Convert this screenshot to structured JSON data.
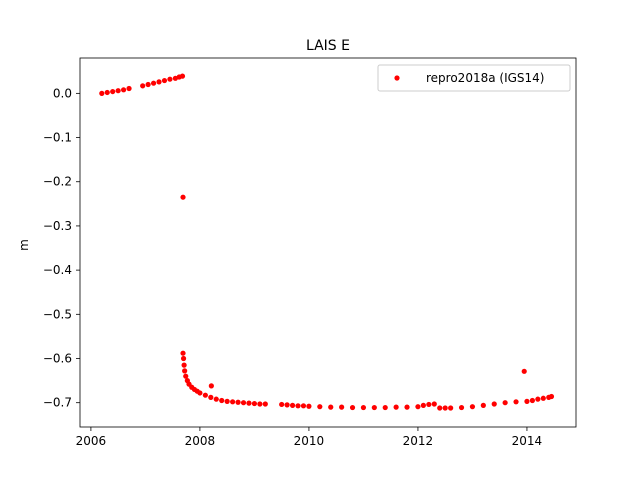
{
  "chart_data": {
    "type": "scatter",
    "title": "LAIS E",
    "xlabel": "",
    "ylabel": "m",
    "xlim": [
      2005.8,
      2014.9
    ],
    "ylim": [
      -0.755,
      0.08
    ],
    "xticks": [
      2006,
      2008,
      2010,
      2012,
      2014
    ],
    "xtick_labels": [
      "2006",
      "2008",
      "2010",
      "2012",
      "2014"
    ],
    "yticks": [
      0.0,
      -0.1,
      -0.2,
      -0.3,
      -0.4,
      -0.5,
      -0.6,
      -0.7
    ],
    "ytick_labels": [
      "0.0",
      "−0.1",
      "−0.2",
      "−0.3",
      "−0.4",
      "−0.5",
      "−0.6",
      "−0.7"
    ],
    "grid": false,
    "legend_position": "top-right",
    "series": [
      {
        "name": "repro2018a (IGS14)",
        "color": "#ff0000",
        "marker": "circle",
        "x": [
          2006.2,
          2006.3,
          2006.4,
          2006.5,
          2006.6,
          2006.7,
          2006.95,
          2007.05,
          2007.15,
          2007.25,
          2007.35,
          2007.45,
          2007.55,
          2007.62,
          2007.68,
          2007.69,
          2007.69,
          2007.7,
          2007.71,
          2007.72,
          2007.74,
          2007.77,
          2007.8,
          2007.85,
          2007.9,
          2007.95,
          2008.0,
          2008.1,
          2008.2,
          2008.21,
          2008.3,
          2008.4,
          2008.5,
          2008.6,
          2008.7,
          2008.8,
          2008.9,
          2009.0,
          2009.1,
          2009.2,
          2009.5,
          2009.6,
          2009.7,
          2009.8,
          2009.9,
          2010.0,
          2010.2,
          2010.4,
          2010.6,
          2010.8,
          2011.0,
          2011.2,
          2011.4,
          2011.6,
          2011.8,
          2012.0,
          2012.1,
          2012.2,
          2012.3,
          2012.4,
          2012.5,
          2012.6,
          2012.8,
          2013.0,
          2013.2,
          2013.4,
          2013.6,
          2013.8,
          2013.95,
          2014.0,
          2014.1,
          2014.2,
          2014.3,
          2014.4,
          2014.45
        ],
        "y": [
          0.0,
          0.002,
          0.004,
          0.006,
          0.008,
          0.011,
          0.017,
          0.02,
          0.023,
          0.026,
          0.029,
          0.032,
          0.034,
          0.037,
          0.039,
          -0.235,
          -0.588,
          -0.6,
          -0.615,
          -0.628,
          -0.64,
          -0.65,
          -0.658,
          -0.665,
          -0.67,
          -0.674,
          -0.678,
          -0.683,
          -0.688,
          -0.662,
          -0.692,
          -0.695,
          -0.697,
          -0.698,
          -0.699,
          -0.7,
          -0.701,
          -0.702,
          -0.703,
          -0.703,
          -0.704,
          -0.705,
          -0.706,
          -0.707,
          -0.707,
          -0.708,
          -0.709,
          -0.71,
          -0.71,
          -0.711,
          -0.711,
          -0.711,
          -0.711,
          -0.71,
          -0.71,
          -0.709,
          -0.706,
          -0.704,
          -0.703,
          -0.712,
          -0.712,
          -0.712,
          -0.711,
          -0.709,
          -0.706,
          -0.703,
          -0.7,
          -0.698,
          -0.629,
          -0.697,
          -0.695,
          -0.692,
          -0.69,
          -0.688,
          -0.686
        ]
      }
    ]
  }
}
